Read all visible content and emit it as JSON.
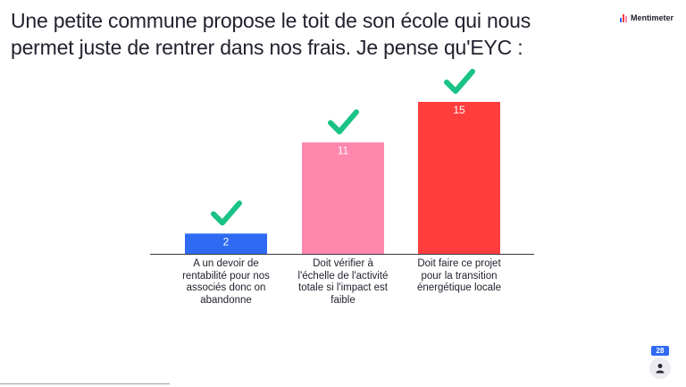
{
  "slide": {
    "question": "Une petite commune propose le toit de son école qui nous permet juste de rentrer dans nos frais. Je pense qu'EYC :"
  },
  "brand": {
    "name": "Mentimeter",
    "icon": "mentimeter-bars-icon"
  },
  "audience": {
    "count": "28",
    "icon": "person-icon"
  },
  "colors": {
    "check": "#19c285",
    "axis": "#3a3a44",
    "value_text": "#ffffff"
  },
  "chart_data": {
    "type": "bar",
    "categories": [
      "A un devoir de rentabilité pour nos associés donc on abandonne",
      "Doit vérifier à l'échelle de l'activité totale si l'impact est faible",
      "Doit faire ce projet pour la transition énergétique locale"
    ],
    "values": [
      2,
      11,
      15
    ],
    "value_labels": [
      "2",
      "11",
      "15"
    ],
    "colors": [
      "#2f6af2",
      "#ff86ad",
      "#ff3d3d"
    ],
    "correct": [
      true,
      true,
      true
    ],
    "ylim": [
      0,
      15
    ],
    "grid": false,
    "legend": "none"
  }
}
